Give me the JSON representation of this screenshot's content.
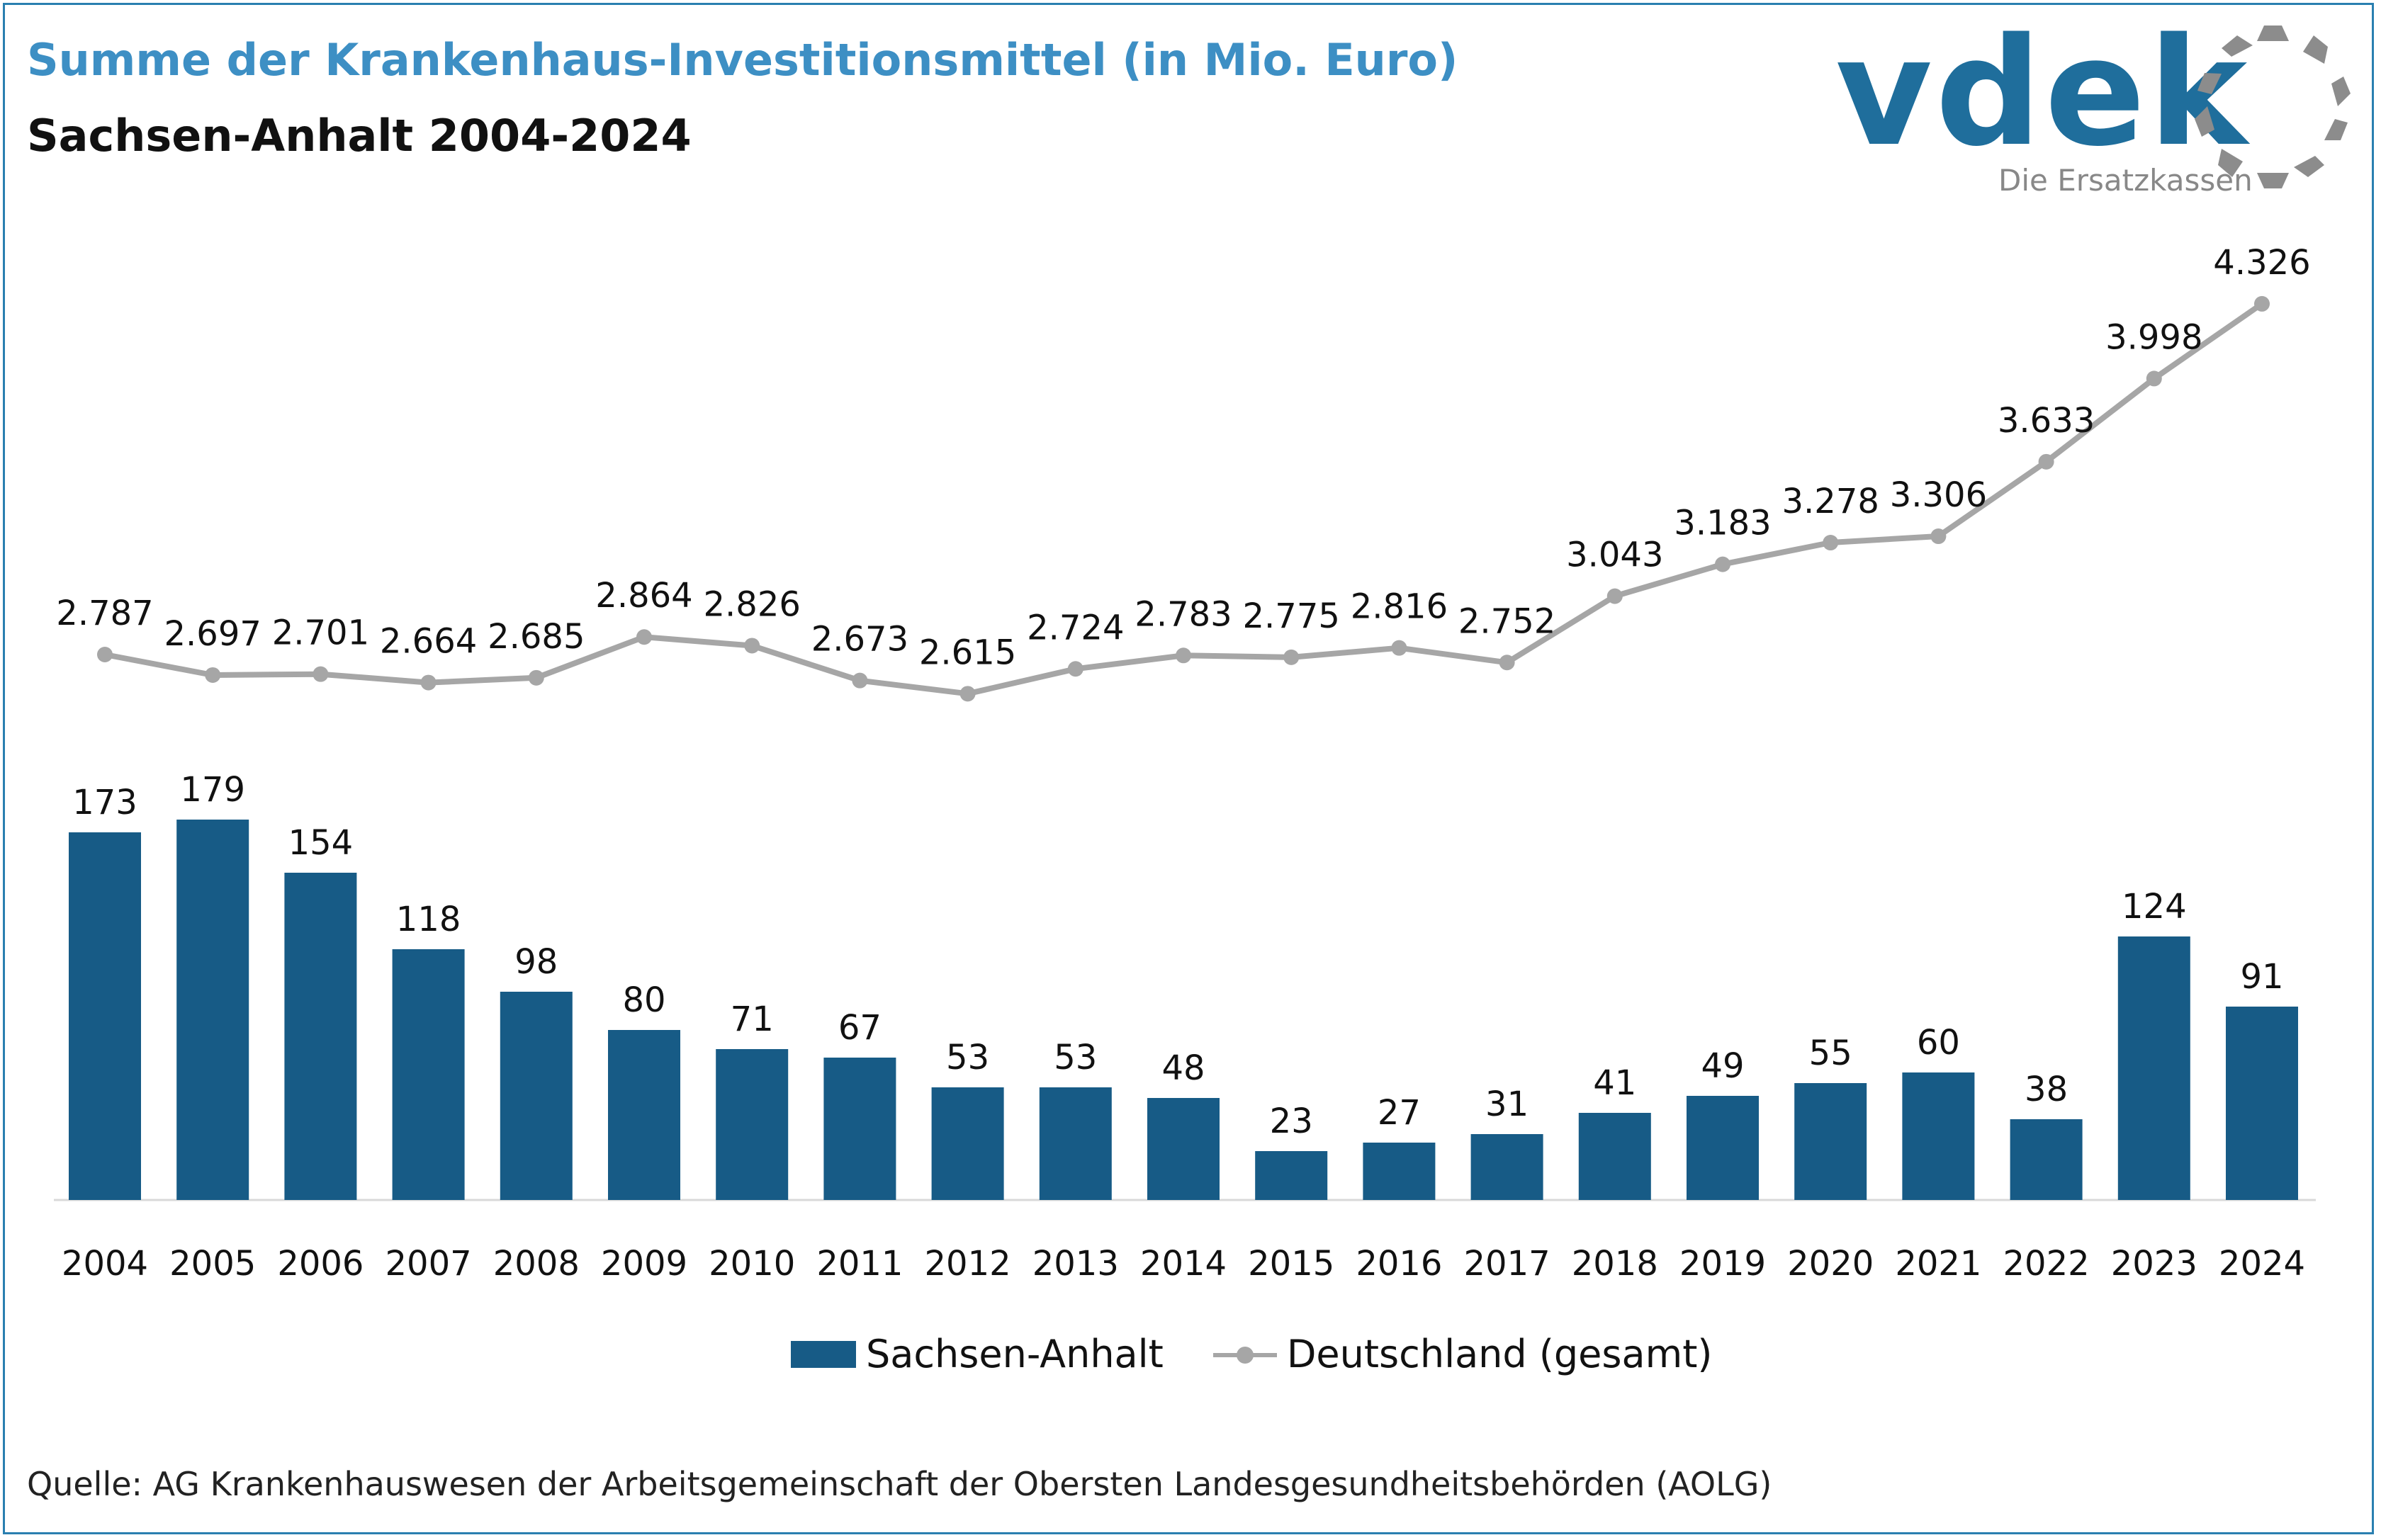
{
  "header": {
    "title": "Summe der Krankenhaus-Investitionsmittel (in Mio. Euro)",
    "subtitle": "Sachsen-Anhalt 2004-2024"
  },
  "logo": {
    "wordmark": "vdek",
    "tagline": "Die Ersatzkassen",
    "color": "#1f6e9c"
  },
  "chart_data": {
    "type": "bar",
    "categories": [
      "2004",
      "2005",
      "2006",
      "2007",
      "2008",
      "2009",
      "2010",
      "2011",
      "2012",
      "2013",
      "2014",
      "2015",
      "2016",
      "2017",
      "2018",
      "2019",
      "2020",
      "2021",
      "2022",
      "2023",
      "2024"
    ],
    "series": [
      {
        "name": "Sachsen-Anhalt",
        "type": "bar",
        "color": "#175b86",
        "values": [
          173,
          179,
          154,
          118,
          98,
          80,
          71,
          67,
          53,
          53,
          48,
          23,
          27,
          31,
          41,
          49,
          55,
          60,
          38,
          124,
          91
        ],
        "labels": [
          "173",
          "179",
          "154",
          "118",
          "98",
          "80",
          "71",
          "67",
          "53",
          "53",
          "48",
          "23",
          "27",
          "31",
          "41",
          "49",
          "55",
          "60",
          "38",
          "124",
          "91"
        ]
      },
      {
        "name": "Deutschland (gesamt)",
        "type": "line",
        "color": "#a6a6a6",
        "values": [
          2787,
          2697,
          2701,
          2664,
          2685,
          2864,
          2826,
          2673,
          2615,
          2724,
          2783,
          2775,
          2816,
          2752,
          3043,
          3183,
          3278,
          3306,
          3633,
          3998,
          4326
        ],
        "labels": [
          "2.787",
          "2.697",
          "2.701",
          "2.664",
          "2.685",
          "2.864",
          "2.826",
          "2.673",
          "2.615",
          "2.724",
          "2.783",
          "2.775",
          "2.816",
          "2.752",
          "3.043",
          "3.183",
          "3.278",
          "3.306",
          "3.633",
          "3.998",
          "4.326"
        ]
      }
    ],
    "grid": false,
    "legend": "bottom"
  },
  "source": "Quelle: AG Krankenhauswesen der Arbeitsgemeinschaft der Obersten Landesgesundheitsbehörden (AOLG)"
}
